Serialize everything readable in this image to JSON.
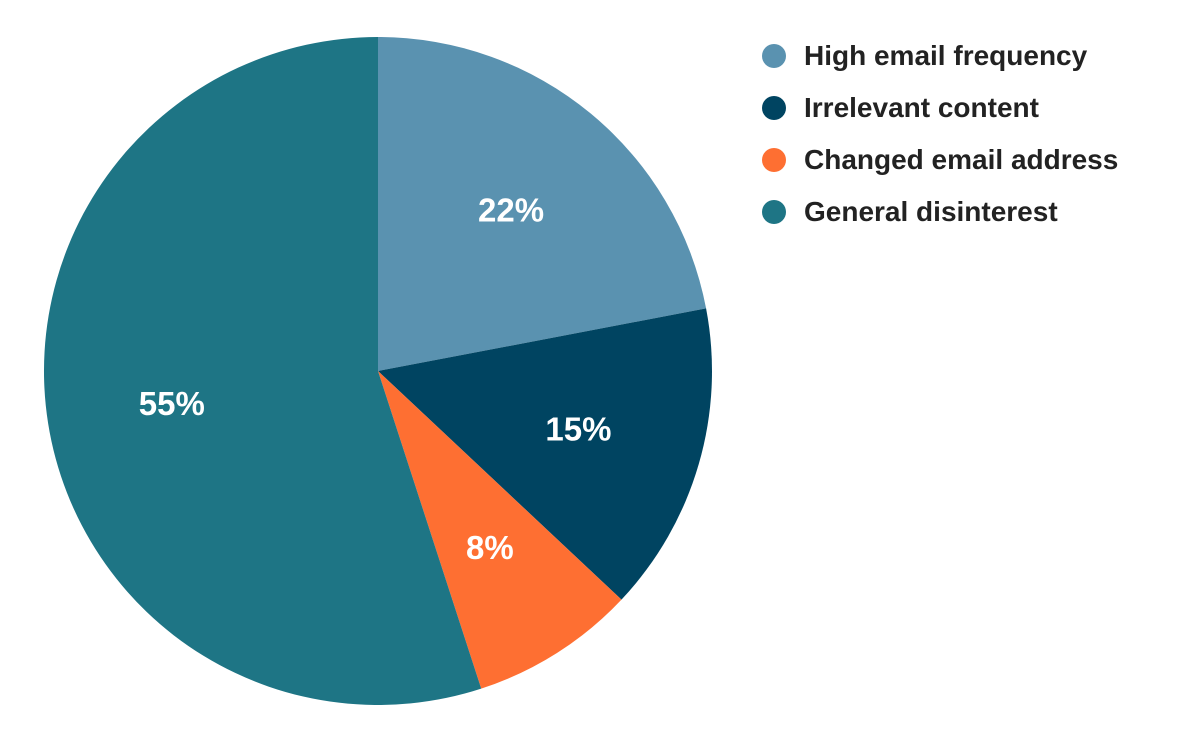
{
  "chart_data": {
    "type": "pie",
    "title": "",
    "legend_position": "top-right",
    "slices": [
      {
        "label": "High email frequency",
        "value": 22,
        "display": "22%",
        "color": "#5a92b0"
      },
      {
        "label": "Irrelevant content",
        "value": 15,
        "display": "15%",
        "color": "#004461"
      },
      {
        "label": "Changed email address",
        "value": 8,
        "display": "8%",
        "color": "#fe6f32"
      },
      {
        "label": "General disinterest",
        "value": 55,
        "display": "55%",
        "color": "#1e7585"
      }
    ]
  }
}
